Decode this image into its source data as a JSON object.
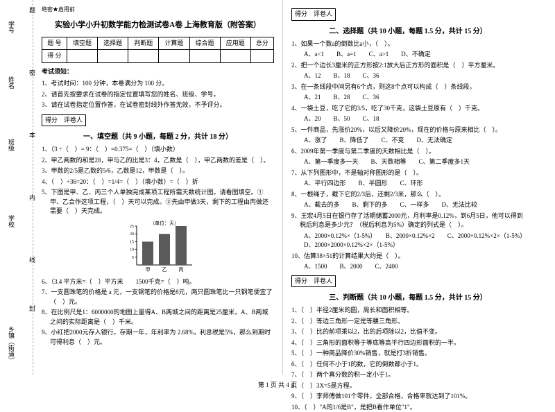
{
  "sidebar": {
    "labels": [
      "学号",
      "姓名",
      "班级",
      "学校",
      "乡镇（街道）"
    ],
    "cuts": [
      "题",
      "密",
      "本",
      "内",
      "线",
      "封"
    ]
  },
  "header": {
    "secret": "绝密★启用前",
    "title": "实验小学小升初数学能力检测试卷A卷 上海教育版（附答案）"
  },
  "scoreTable": {
    "cols": [
      "题 号",
      "填空题",
      "选择题",
      "判断题",
      "计算题",
      "综合题",
      "应用题",
      "总分"
    ],
    "row2": "得 分"
  },
  "notice": {
    "head": "考试须知：",
    "items": [
      "1、考试时间：100 分钟，本卷满分为 100 分。",
      "2、请首先按要求在试卷的指定位置填写您的姓名、班级、学号。",
      "3、请在试卷指定位置作答，在试卷密封线外作答无效，不予评分。"
    ]
  },
  "scoreBoxLabel": "得分　评卷人",
  "s1": {
    "title": "一、填空题（共 9 小题，每题 2 分，共计 18 分）",
    "q": [
      "1、（3 ÷（　）= 9：（　）=0.375=（　）（填小数）",
      "2、甲乙两数的和是28，甲与乙的比是3：4，乙数是（　），甲乙两数的差是（　）。",
      "3、甲数的2/5是乙数的5/6，乙数是12，甲数是（　）。",
      "4、（　）÷36=20：（　）=1/4=（　）（填小数）=（　）折",
      "5、下图是甲、乙、丙三个人单独完成某项工程所需天数统计图。请看图填空。①甲、乙合作这项工程，（　）天可以完成。②先由甲做3天，剩下的工程由丙做还需要（　）天完成。"
    ],
    "chart": {
      "ylabel": "（单位：天）",
      "yticks": [
        5,
        10,
        15,
        20,
        25
      ],
      "cats": [
        "甲",
        "乙",
        "丙"
      ],
      "vals": [
        15,
        20,
        25
      ],
      "bar_color": "#5a5a5a",
      "bg": "#ffffff",
      "w": 110,
      "h": 80
    },
    "q2": [
      "6、（3.4 平方米=（　）平方米　　1500千克=（　）吨。",
      "7、一支圆珠笔的价格是 a 元，一支钢笔的价格是8元，两只圆珠笔比一只钢笔便宜了（　）元。",
      "8、在比例尺是1：6000000的地图上量得A、B两城之间的距离是25厘米，A、B两城之间的实际距离是（　）千米。",
      "9、小红把2000元存入银行，存期一年，年利率为 2.68%，利息税是5%，那么到期时可得利息（　）元。"
    ]
  },
  "s2": {
    "title": "二、选择题（共 10 小题，每题 1.5 分，共计 15 分）",
    "q": [
      {
        "t": "1、如果一个数a的倒数比a小，（　）。",
        "o": [
          "A、a<1",
          "B、a=1",
          "C、a>1",
          "D、不确定"
        ]
      },
      {
        "t": "2、把一个边长3厘米的正方形按2:1放大后正方形的面积是（　）平方厘米。",
        "o": [
          "A、12",
          "B、18",
          "C、36"
        ]
      },
      {
        "t": "3、在一条线段中间另有6个点，则这8个点可以构成（　）条线段。",
        "o": [
          "A、21",
          "B、28",
          "C、36"
        ]
      },
      {
        "t": "4、一袋土豆，吃了它的3/5，吃了30千克，这袋土豆原有（　）千克。",
        "o": [
          "A、20",
          "B、50",
          "C、18"
        ]
      },
      {
        "t": "5、一件商品，先涨价20%，以后又降价20%，现在的价格与原来相比（　）。",
        "o": [
          "A、涨了",
          "B、降低了",
          "C、不变",
          "D、无法确定"
        ]
      },
      {
        "t": "6、2009年第一季度与第二季度的天数相比是（　）。",
        "o": [
          "A、第一季度多一天",
          "B、天数相等",
          "C、第二季度多1天"
        ]
      },
      {
        "t": "7、从下列图形中，不是轴对称图形的是（　）。",
        "o": [
          "A、平行四边形",
          "B、半圆形",
          "C、环形"
        ]
      },
      {
        "t": "8、一根绳子，截下它的2/3后，还剩2/3米，那么（　）。",
        "o": [
          "A、截去的多",
          "B、剩下的多",
          "C、一样多",
          "D、无法比较"
        ]
      },
      {
        "t": "9、王宏4月5日在银行存了活期储蓄2000元，月利率是0.12%，到6月5日，他可以得到税后利息是多少元？（税后利息为5%）确定的列式是（　）。",
        "o": [
          "A、2000×0.12%×（1-5%）",
          "B、2000×0.12%×2",
          "C、2000×0.12%×2×（1-5%）",
          "D、2000×2000×0.12%×2×（1-5%）"
        ]
      },
      {
        "t": "10、估算38×51的计算结果大约是（　）。",
        "o": [
          "A、1500",
          "B、2000",
          "C、2400"
        ]
      }
    ]
  },
  "s3": {
    "title": "三、判断题（共 10 小题，每题 1.5 分，共计 15 分）",
    "q": [
      "1、（　）半径2厘米的圆，周长和面积相等。",
      "2、（　）等边三角形一定是等腰三角形。",
      "3、（　）比的前项乘以2，比的后项除以2，比值不变。",
      "4、（　）三角形的面积等于等底等高平行四边形面积的一半。",
      "5、（　）一种商品降价30%销售，就是打3折销售。",
      "6、（　）任何不小于1的数，它的倒数都小于1。",
      "7、（　）两个真分数的积一定小于1。",
      "8、（　）3X=5是方程。",
      "9、（　）李师傅做101个零件，全部合格，合格率就达到了101%。",
      "10、（　）\"A的1/6是B\"，是把B看作单位\"1\"。"
    ]
  },
  "footer": "第 1 页 共 4 页"
}
